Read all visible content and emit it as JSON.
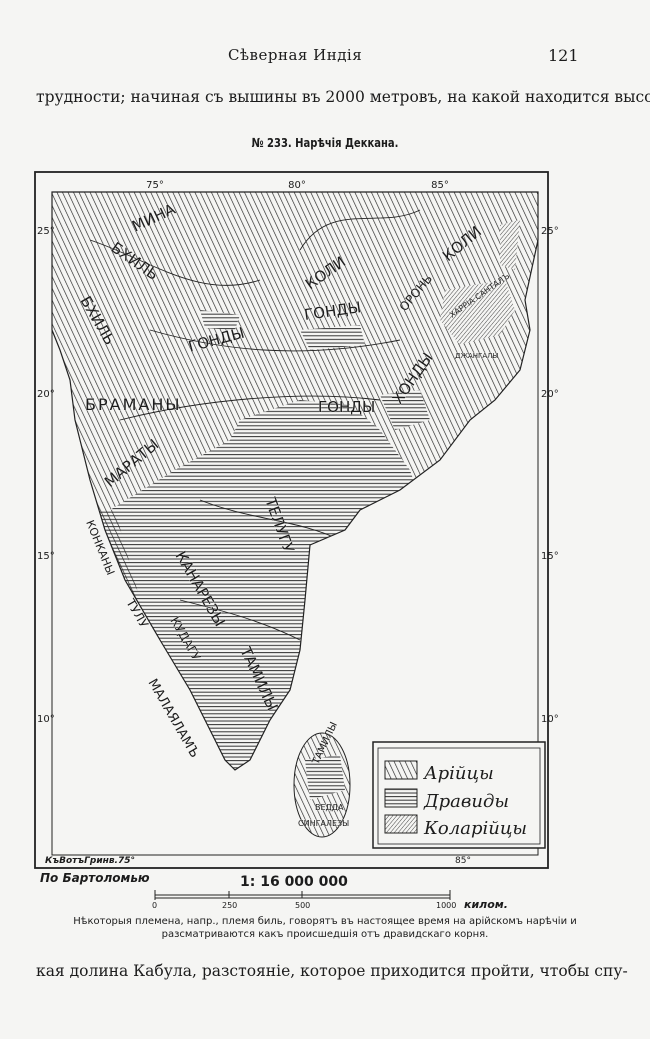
{
  "header": {
    "running_title": "Сѣверная Индія",
    "page_number": "121"
  },
  "text_top": "трудности; начиная съ вышины въ 2000 метровъ, на какой находится высо-",
  "figure": {
    "title": "№ 233. Нарѣчія Деккана.",
    "longitude_labels_top": [
      "75°",
      "80°",
      "85°"
    ],
    "latitude_labels": [
      "25°",
      "20°",
      "15°",
      "10°"
    ],
    "bottom_left_label": "КъВотъГринв.75°",
    "bottom_right_label": "85°",
    "source": "По Бартоломью",
    "scale": "1:  16 000 000",
    "scale_ticks": [
      "0",
      "250",
      "500",
      "1000"
    ],
    "scale_unit": "килом.",
    "legend": [
      {
        "label": "Арійцы",
        "pattern": "diagonal-coarse"
      },
      {
        "label": "Дравиды",
        "pattern": "horizontal"
      },
      {
        "label": "Коларійцы",
        "pattern": "diagonal-fine"
      }
    ],
    "labels": {
      "mina": "МИНА",
      "bhil1": "БХИЛЬ",
      "bhil2": "БХИЛЬ",
      "koli1": "КОЛИ",
      "koli2": "КОЛИ",
      "gondy1": "ГОНДЫ",
      "gondy2": "ГОНДЫ",
      "gondy3": "ГОНДЫ",
      "oron": "ОРОНЬ",
      "kharria": "ХАРРІА САНТАЛЪ",
      "djangaly": "ДЖАНГАЛЫ",
      "khondy": "ХОНДЫ",
      "bramany": "БРАМАНЫ",
      "maraty": "МАРАТЫ",
      "konkany": "КОНКАНЫ",
      "tulu": "ТУЛУ",
      "kudagu": "КУДАГУ",
      "malayalam": "МАЛАЯЛАМЪ",
      "kanarezy": "КАНАРЕЗЫ",
      "telugu": "ТЕЛУГУ",
      "tamily": "ТАМИЛЫ",
      "tamily2": "ТАМИЛЫ",
      "vedda": "ВЕДДА",
      "singalezy": "СИНГАЛЕЗЫ"
    }
  },
  "caption": [
    "Нѣкоторыя племена, напр., племя биль, говорятъ въ настоящее время на арійскомъ нарѣчіи и",
    "разсматриваются какъ происшедшія отъ дравидскаго корня."
  ],
  "text_bottom": "кая долина Кабула, разстояніе, которое приходится пройти, чтобы спу-"
}
